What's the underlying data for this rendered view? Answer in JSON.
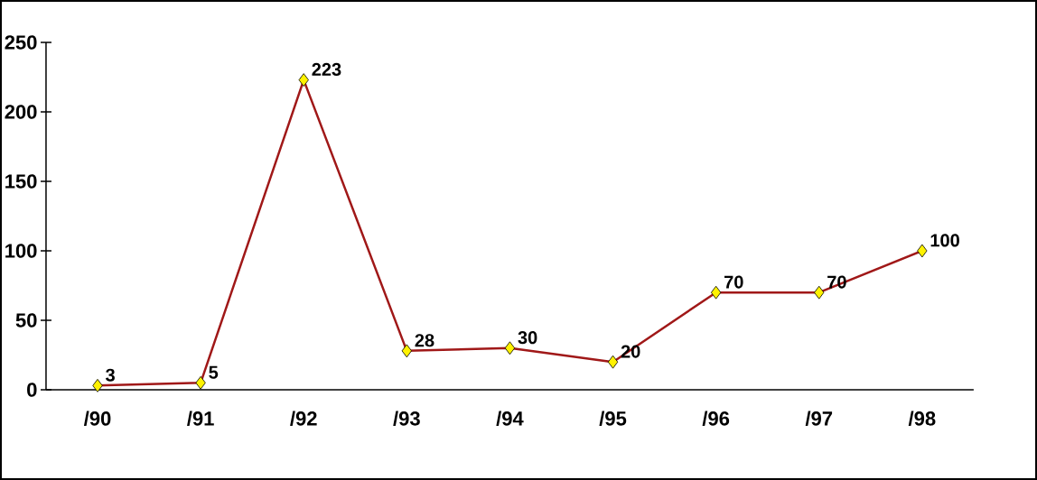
{
  "chart_data": {
    "type": "line",
    "categories": [
      "/90",
      "/91",
      "/92",
      "/93",
      "/94",
      "/95",
      "/96",
      "/97",
      "/98"
    ],
    "series": [
      {
        "color": "#a01818",
        "values": [
          3,
          5,
          223,
          28,
          30,
          20,
          70,
          70,
          100
        ]
      }
    ],
    "ylim": [
      0,
      250
    ],
    "yticks": [
      0,
      50,
      100,
      150,
      200,
      250
    ],
    "marker": "diamond",
    "data_labels": true,
    "grid": false
  }
}
